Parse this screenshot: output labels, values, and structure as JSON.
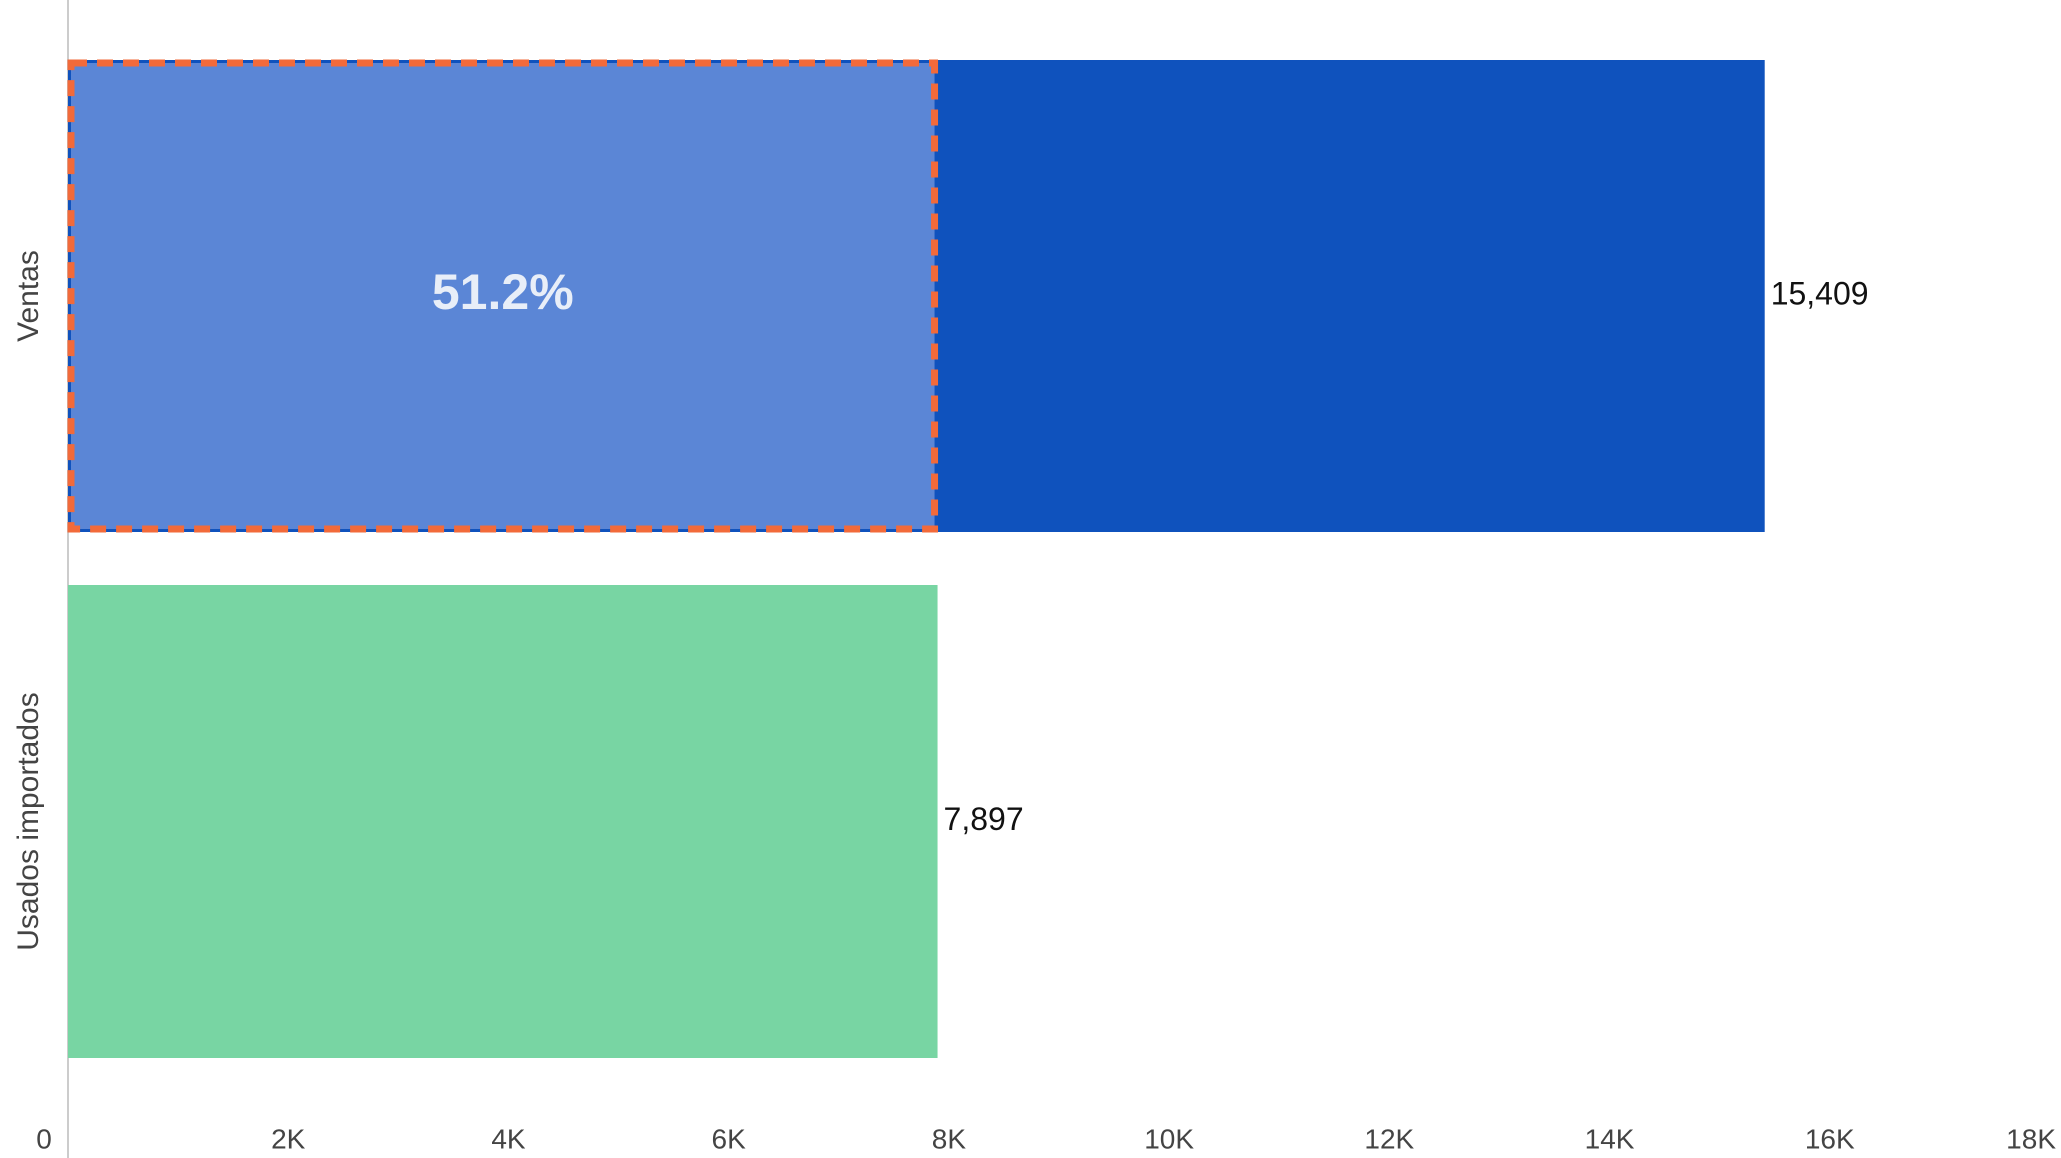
{
  "chart_data": {
    "type": "hbar",
    "categories": [
      "Ventas",
      "Usados importados"
    ],
    "values": [
      15409,
      7897
    ],
    "value_labels": [
      "15,409",
      "7,897"
    ],
    "colors": [
      "#0f52bd",
      "#78d5a3"
    ],
    "annotation": "51.2%",
    "highlight_color": "#f26a3a",
    "xlim": [
      0,
      18000
    ],
    "xticks": [
      0,
      {
        "value": 2000,
        "label": "2K"
      },
      {
        "value": 4000,
        "label": "4K"
      },
      {
        "value": 6000,
        "label": "6K"
      },
      {
        "value": 8000,
        "label": "8K"
      },
      {
        "value": 10000,
        "label": "10K"
      },
      {
        "value": 12000,
        "label": "12K"
      },
      {
        "value": 14000,
        "label": "14K"
      },
      {
        "value": 16000,
        "label": "16K"
      },
      {
        "value": 18000,
        "label": "18K"
      }
    ]
  }
}
